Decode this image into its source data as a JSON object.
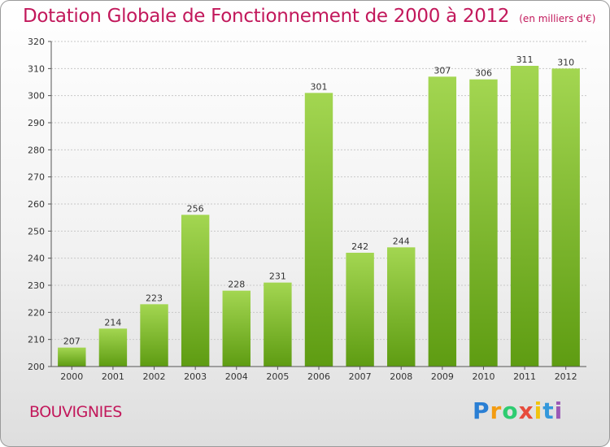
{
  "header": {
    "title": "Dotation Globale de Fonctionnement de 2000 à 2012",
    "subtitle": "(en milliers d'€)"
  },
  "footer": {
    "commune": "BOUVIGNIES",
    "logo_letters": [
      {
        "char": "P",
        "color": "#2a7fd4"
      },
      {
        "char": "r",
        "color": "#f39c12"
      },
      {
        "char": "o",
        "color": "#2ecc71"
      },
      {
        "char": "x",
        "color": "#e74c3c"
      },
      {
        "char": "i",
        "color": "#f1c40f"
      },
      {
        "char": "t",
        "color": "#3498db"
      },
      {
        "char": "i",
        "color": "#9b59b6"
      }
    ]
  },
  "chart_data": {
    "type": "bar",
    "categories": [
      "2000",
      "2001",
      "2002",
      "2003",
      "2004",
      "2005",
      "2006",
      "2007",
      "2008",
      "2009",
      "2010",
      "2011",
      "2012"
    ],
    "values": [
      207,
      214,
      223,
      256,
      228,
      231,
      301,
      242,
      244,
      307,
      306,
      311,
      310
    ],
    "title": "Dotation Globale de Fonctionnement de 2000 à 2012",
    "subtitle": "(en milliers d'€)",
    "xlabel": "",
    "ylabel": "",
    "ylim": [
      200,
      320
    ],
    "yticks": [
      200,
      210,
      220,
      230,
      240,
      250,
      260,
      270,
      280,
      290,
      300,
      310,
      320
    ],
    "grid": true,
    "bar_color_top": "#a3d651",
    "bar_color_bottom": "#5e9c12"
  }
}
